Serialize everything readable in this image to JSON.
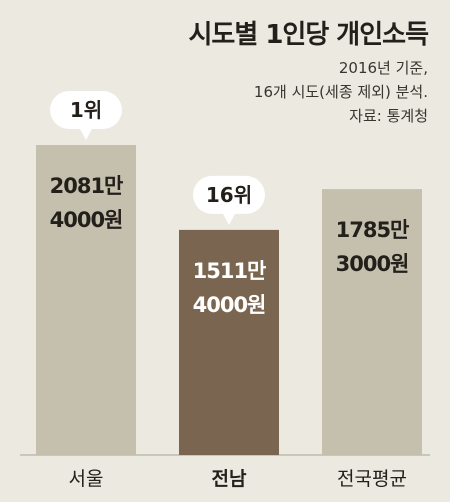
{
  "title": "시도별 1인당 개인소득",
  "notes": [
    "2016년 기준,",
    "16개 시도(세종 제외) 분석.",
    "자료: 통계청"
  ],
  "colors": {
    "background": "#ece9e1",
    "bar": "#c5c0ae",
    "highlight_bar": "#7a6650",
    "text": "#231f1a",
    "highlight_text": "#ffffff",
    "bubble": "#ffffff",
    "baseline": "#a9a290"
  },
  "chart_data": {
    "type": "bar",
    "categories": [
      "서울",
      "전남",
      "전국평균"
    ],
    "values": [
      20814000,
      15114000,
      17853000
    ],
    "value_labels": [
      [
        "2081만",
        "4000원"
      ],
      [
        "1511만",
        "4000원"
      ],
      [
        "1785만",
        "3000원"
      ]
    ],
    "ranks": [
      "1위",
      "16위",
      ""
    ],
    "highlight_index": 1,
    "unit": "원"
  }
}
